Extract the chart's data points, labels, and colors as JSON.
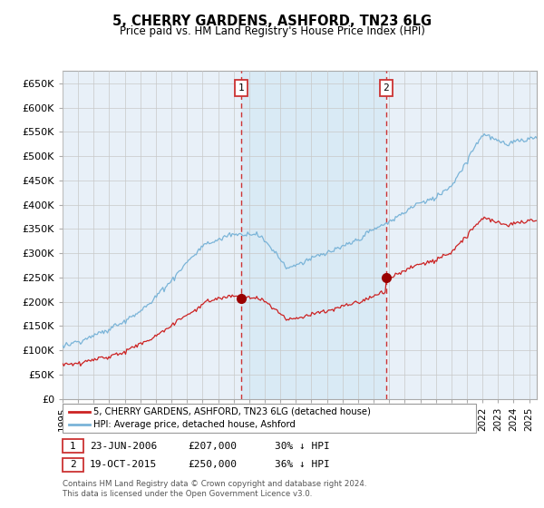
{
  "title": "5, CHERRY GARDENS, ASHFORD, TN23 6LG",
  "subtitle": "Price paid vs. HM Land Registry's House Price Index (HPI)",
  "ylim": [
    0,
    675000
  ],
  "yticks": [
    0,
    50000,
    100000,
    150000,
    200000,
    250000,
    300000,
    350000,
    400000,
    450000,
    500000,
    550000,
    600000,
    650000
  ],
  "xstart": 1995.0,
  "xend": 2025.5,
  "hpi_color": "#7ab4d8",
  "hpi_fill_color": "#d9eaf5",
  "price_color": "#cc2222",
  "sale1_date": 2006.48,
  "sale1_price": 207000,
  "sale2_date": 2015.8,
  "sale2_price": 250000,
  "legend_property": "5, CHERRY GARDENS, ASHFORD, TN23 6LG (detached house)",
  "legend_hpi": "HPI: Average price, detached house, Ashford",
  "annotation1_date": "23-JUN-2006",
  "annotation1_price": "£207,000",
  "annotation1_hpi": "30% ↓ HPI",
  "annotation2_date": "19-OCT-2015",
  "annotation2_price": "£250,000",
  "annotation2_hpi": "36% ↓ HPI",
  "footer": "Contains HM Land Registry data © Crown copyright and database right 2024.\nThis data is licensed under the Open Government Licence v3.0.",
  "bg_color": "#e8f0f8",
  "grid_color": "#c8c8c8"
}
